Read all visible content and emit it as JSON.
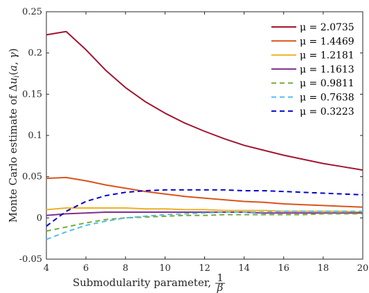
{
  "chart_data": {
    "type": "line",
    "xlabel": "Submodularity parameter, 1/β",
    "ylabel": "Monte Carlo estimate of Δu_i(a,γ)",
    "xlim": [
      4,
      20
    ],
    "ylim": [
      -0.05,
      0.25
    ],
    "xticks": [
      "4",
      "6",
      "8",
      "10",
      "12",
      "14",
      "16",
      "18",
      "20"
    ],
    "yticks": [
      "-0.05",
      "0",
      "0.05",
      "0.1",
      "0.15",
      "0.2",
      "0.25"
    ],
    "grid": false,
    "legend_position": "top-right",
    "x": [
      4,
      5,
      6,
      7,
      8,
      9,
      10,
      11,
      12,
      13,
      14,
      15,
      16,
      17,
      18,
      19,
      20
    ],
    "series": [
      {
        "name": "μ = 2.0735",
        "color": "#a2142f",
        "dash": "solid",
        "values": [
          0.222,
          0.226,
          0.204,
          0.179,
          0.158,
          0.141,
          0.127,
          0.115,
          0.105,
          0.096,
          0.088,
          0.082,
          0.076,
          0.071,
          0.066,
          0.062,
          0.058
        ]
      },
      {
        "name": "μ = 1.4469",
        "color": "#d95319",
        "dash": "solid",
        "values": [
          0.048,
          0.049,
          0.045,
          0.04,
          0.036,
          0.032,
          0.029,
          0.026,
          0.024,
          0.022,
          0.02,
          0.019,
          0.017,
          0.016,
          0.015,
          0.014,
          0.013
        ]
      },
      {
        "name": "μ = 1.2181",
        "color": "#edb120",
        "dash": "solid",
        "values": [
          0.01,
          0.012,
          0.012,
          0.012,
          0.012,
          0.011,
          0.011,
          0.01,
          0.01,
          0.009,
          0.009,
          0.009,
          0.008,
          0.008,
          0.008,
          0.008,
          0.007
        ]
      },
      {
        "name": "μ = 1.1613",
        "color": "#7e2f8e",
        "dash": "solid",
        "values": [
          0.003,
          0.005,
          0.006,
          0.007,
          0.007,
          0.007,
          0.007,
          0.007,
          0.007,
          0.007,
          0.007,
          0.006,
          0.006,
          0.006,
          0.006,
          0.006,
          0.006
        ]
      },
      {
        "name": "μ = 0.9811",
        "color": "#77ac30",
        "dash": "dashed",
        "values": [
          -0.016,
          -0.011,
          -0.006,
          -0.002,
          0.0,
          0.001,
          0.002,
          0.003,
          0.003,
          0.004,
          0.004,
          0.004,
          0.004,
          0.004,
          0.005,
          0.005,
          0.005
        ]
      },
      {
        "name": "μ = 0.7638",
        "color": "#4dbeee",
        "dash": "dashed",
        "values": [
          -0.026,
          -0.017,
          -0.009,
          -0.004,
          0.0,
          0.002,
          0.004,
          0.005,
          0.006,
          0.007,
          0.007,
          0.007,
          0.008,
          0.008,
          0.008,
          0.008,
          0.008
        ]
      },
      {
        "name": "μ = 0.3223",
        "color": "#0000cc",
        "dash": "dashed",
        "values": [
          -0.01,
          0.008,
          0.02,
          0.027,
          0.031,
          0.033,
          0.034,
          0.034,
          0.034,
          0.034,
          0.033,
          0.033,
          0.032,
          0.031,
          0.03,
          0.029,
          0.028
        ]
      }
    ]
  }
}
